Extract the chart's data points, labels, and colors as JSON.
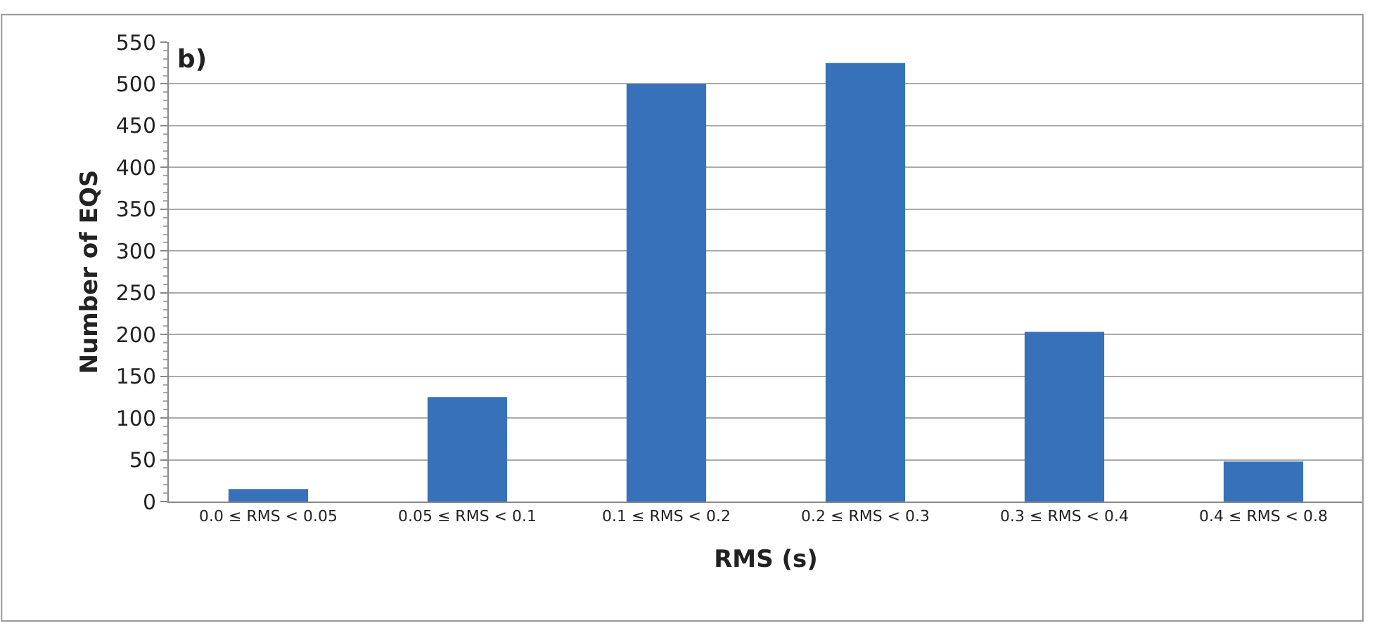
{
  "chart_data": {
    "type": "bar",
    "xlabel": "RMS (s)",
    "ylabel": "Number of EQS",
    "annotations": [
      "b)"
    ],
    "categories": [
      "0.0 ≤ RMS < 0.05",
      "0.05 ≤ RMS < 0.1",
      "0.1 ≤ RMS < 0.2",
      "0.2 ≤ RMS < 0.3",
      "0.3 ≤ RMS < 0.4",
      "0.4 ≤ RMS < 0.8"
    ],
    "values": [
      15,
      125,
      500,
      525,
      203,
      48
    ],
    "color": "#3671b9",
    "ylim": [
      0,
      550
    ],
    "yticks": [
      0,
      50,
      100,
      150,
      200,
      250,
      300,
      350,
      400,
      450,
      500,
      550
    ],
    "grid": "y"
  }
}
